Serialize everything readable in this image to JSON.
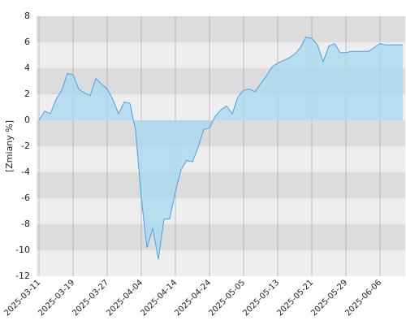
{
  "chart_data": {
    "type": "area",
    "y_label": "[Zmiany %]",
    "categories": [
      "2025-03-11",
      null,
      null,
      null,
      null,
      null,
      "2025-03-19",
      null,
      null,
      null,
      null,
      null,
      "2025-03-27",
      null,
      null,
      null,
      null,
      null,
      "2025-04-04",
      null,
      null,
      null,
      null,
      null,
      "2025-04-14",
      null,
      null,
      null,
      null,
      null,
      "2025-04-24",
      null,
      null,
      null,
      null,
      null,
      "2025-05-05",
      null,
      null,
      null,
      null,
      null,
      "2025-05-13",
      null,
      null,
      null,
      null,
      null,
      "2025-05-21",
      null,
      null,
      null,
      null,
      null,
      "2025-05-29",
      null,
      null,
      null,
      null,
      null,
      "2025-06-06",
      null,
      null,
      null,
      null
    ],
    "values": [
      0,
      0.7,
      0.5,
      1.6,
      2.3,
      3.6,
      3.5,
      2.4,
      2.1,
      1.9,
      3.2,
      2.8,
      2.4,
      1.6,
      0.5,
      1.4,
      1.3,
      -0.8,
      -6,
      -9.8,
      -8.3,
      -10.7,
      -7.6,
      -7.6,
      -5.5,
      -3.8,
      -3.1,
      -3.2,
      -2.1,
      -0.7,
      -0.6,
      0.3,
      0.8,
      1.1,
      0.5,
      1.8,
      2.3,
      2.4,
      2.2,
      2.8,
      3.4,
      4.1,
      4.4,
      4.6,
      4.8,
      5.1,
      5.6,
      6.4,
      6.3,
      5.8,
      4.5,
      5.7,
      5.9,
      5.2,
      5.2,
      5.3,
      5.3,
      5.3,
      5.3,
      5.6,
      5.9,
      5.8,
      5.8,
      5.8,
      5.8
    ],
    "color": "#4a9fe6",
    "fill": "#a8d8f0",
    "ylim": [
      -12,
      8
    ],
    "yticks": [
      -12,
      -10,
      -8,
      -6,
      -4,
      -2,
      0,
      2,
      4,
      6,
      8
    ],
    "band_colors": [
      "#dcdcdc",
      "#eeeeee"
    ]
  }
}
